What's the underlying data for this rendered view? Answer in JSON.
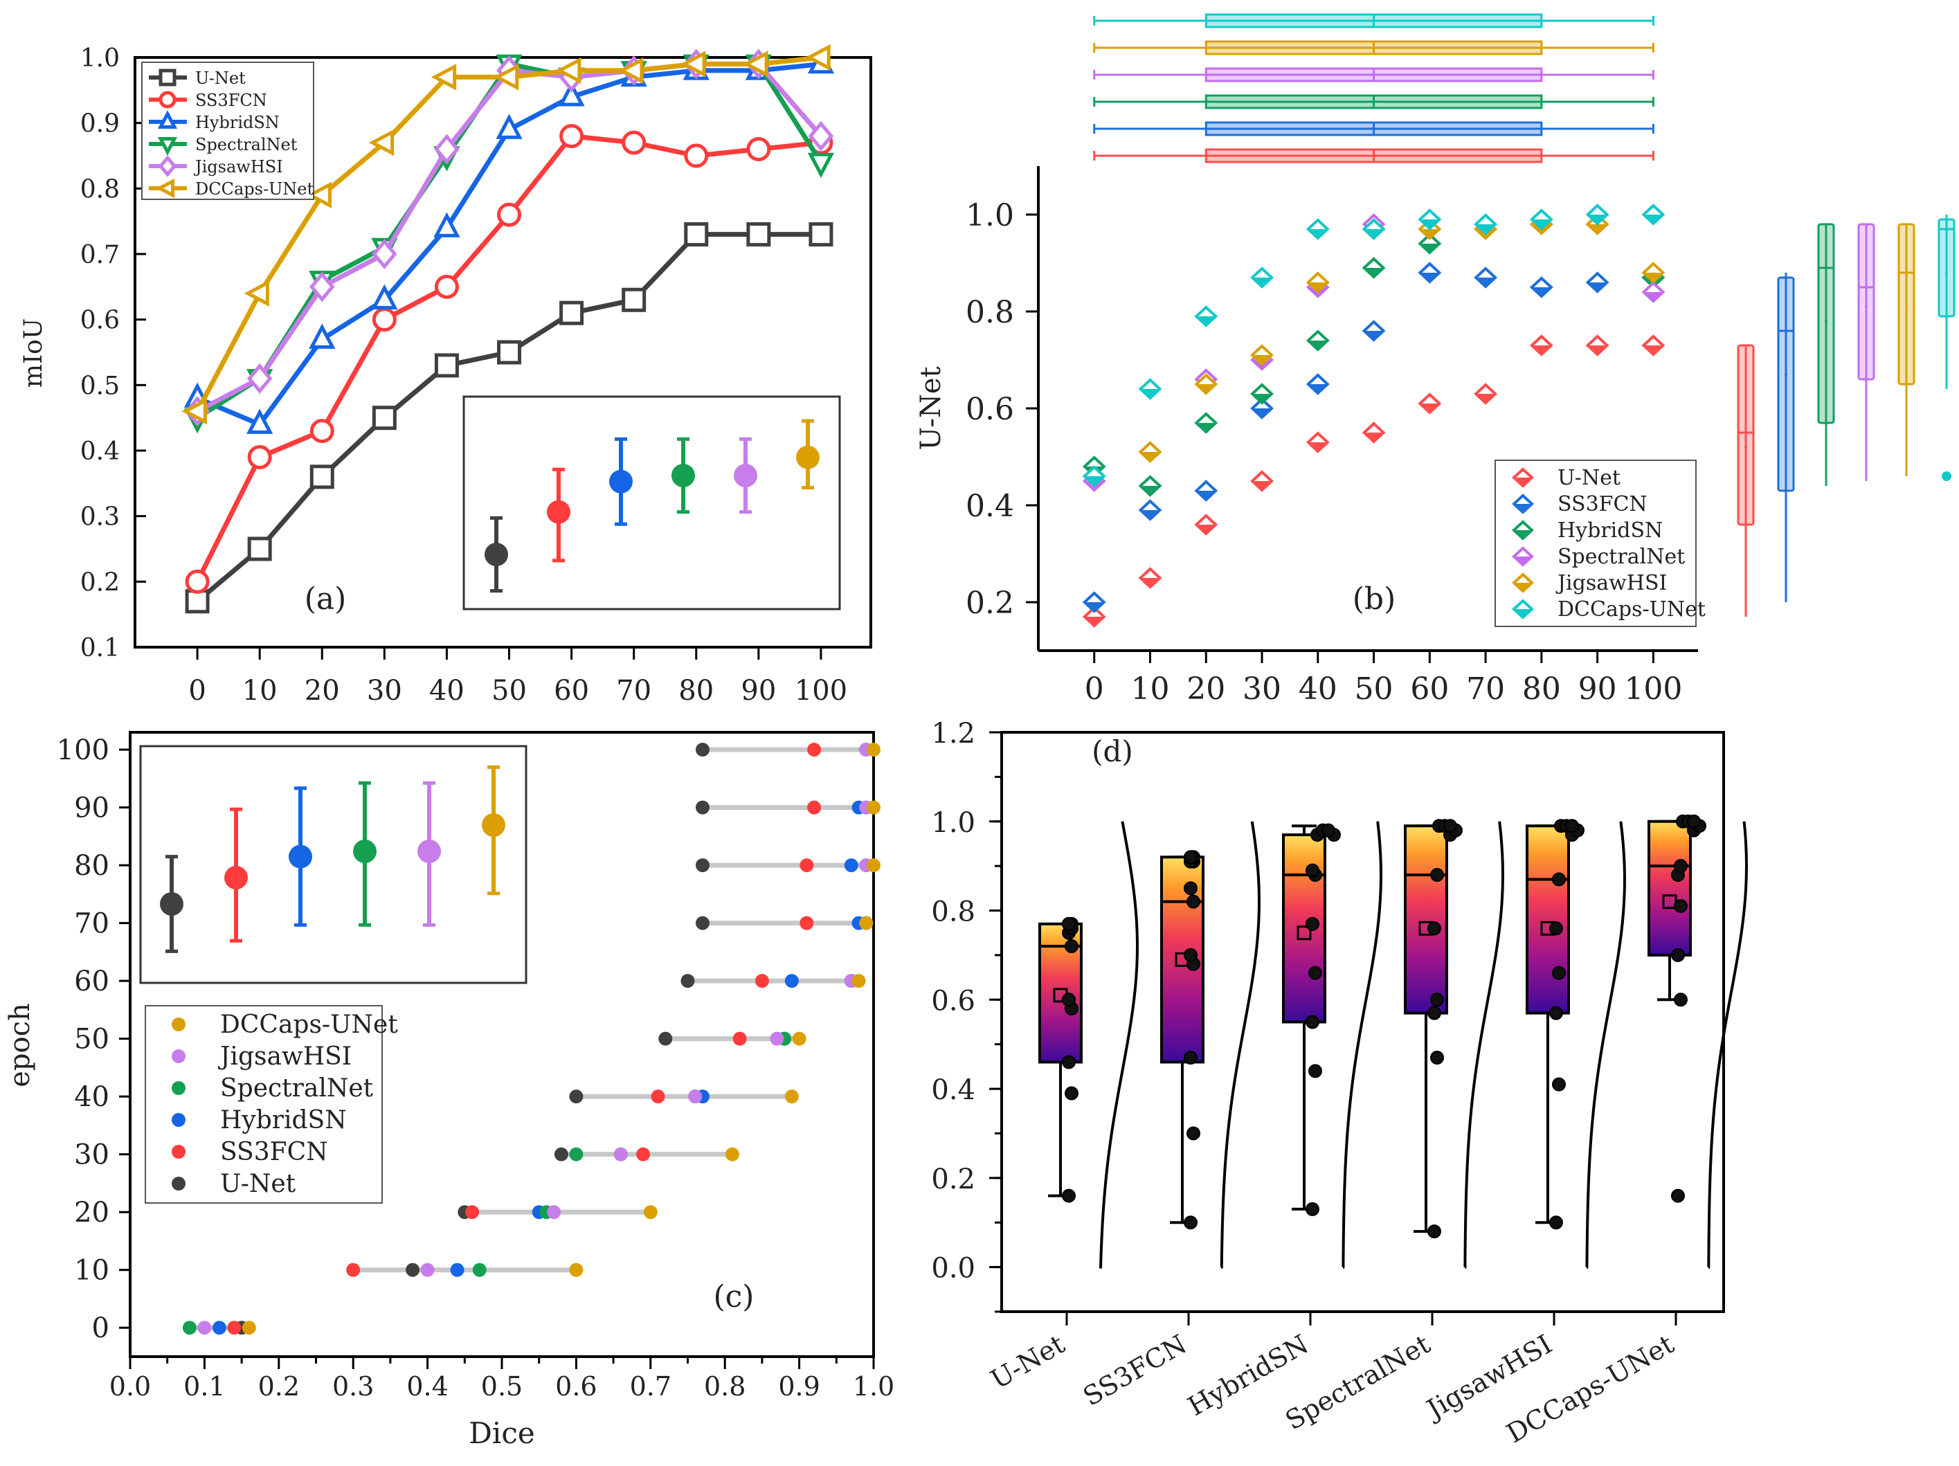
{
  "colors": {
    "a": [
      "#404040",
      "#ff3b3b",
      "#1565e6",
      "#14a050",
      "#c77dea",
      "#dba000"
    ],
    "b": [
      "#ff4d4d",
      "#1e6fd9",
      "#11a060",
      "#c46cf0",
      "#d9a000",
      "#12c9c9"
    ]
  },
  "chart_data": [
    {
      "id": "a",
      "type": "line",
      "panel_label": "(a)",
      "ylabel": "mIoU",
      "xlim": [
        -10,
        108
      ],
      "ylim": [
        0.1,
        1.0
      ],
      "x": [
        0,
        10,
        20,
        30,
        40,
        50,
        60,
        70,
        80,
        90,
        100
      ],
      "xticks": [
        "0",
        "10",
        "20",
        "30",
        "40",
        "50",
        "60",
        "70",
        "80",
        "90",
        "100"
      ],
      "yticks": [
        "0.1",
        "0.2",
        "0.3",
        "0.4",
        "0.5",
        "0.6",
        "0.7",
        "0.8",
        "0.9",
        "1.0"
      ],
      "series": [
        {
          "name": "U-Net",
          "values": [
            0.17,
            0.25,
            0.36,
            0.45,
            0.53,
            0.55,
            0.61,
            0.63,
            0.73,
            0.73,
            0.73
          ]
        },
        {
          "name": "SS3FCN",
          "values": [
            0.2,
            0.39,
            0.43,
            0.6,
            0.65,
            0.76,
            0.88,
            0.87,
            0.85,
            0.86,
            0.87
          ]
        },
        {
          "name": "HybridSN",
          "values": [
            0.48,
            0.44,
            0.57,
            0.63,
            0.74,
            0.89,
            0.94,
            0.97,
            0.98,
            0.98,
            0.99
          ]
        },
        {
          "name": "SpectralNet",
          "values": [
            0.45,
            0.51,
            0.66,
            0.71,
            0.85,
            0.99,
            0.97,
            0.98,
            0.99,
            0.99,
            0.84
          ]
        },
        {
          "name": "JigsawHSI",
          "values": [
            0.46,
            0.51,
            0.65,
            0.7,
            0.86,
            0.98,
            0.97,
            0.98,
            0.99,
            0.99,
            0.88
          ]
        },
        {
          "name": "DCCaps-UNet",
          "values": [
            0.46,
            0.64,
            0.79,
            0.87,
            0.97,
            0.97,
            0.98,
            0.98,
            0.99,
            0.99,
            1.0
          ]
        }
      ],
      "inset_summary": [
        {
          "name": "U-Net",
          "mean": 0.24,
          "low": 0.18,
          "high": 0.3
        },
        {
          "name": "SS3FCN",
          "mean": 0.31,
          "low": 0.23,
          "high": 0.38
        },
        {
          "name": "HybridSN",
          "mean": 0.36,
          "low": 0.29,
          "high": 0.43
        },
        {
          "name": "SpectralNet",
          "mean": 0.37,
          "low": 0.31,
          "high": 0.43
        },
        {
          "name": "JigsawHSI",
          "mean": 0.37,
          "low": 0.31,
          "high": 0.43
        },
        {
          "name": "DCCaps-UNet",
          "mean": 0.4,
          "low": 0.35,
          "high": 0.46
        }
      ]
    },
    {
      "id": "b",
      "type": "scatter",
      "panel_label": "(b)",
      "ylabel": "U-Net",
      "xlim": [
        -10,
        108
      ],
      "ylim": [
        0.1,
        1.1
      ],
      "x": [
        0,
        10,
        20,
        30,
        40,
        50,
        60,
        70,
        80,
        90,
        100
      ],
      "xticks": [
        "0",
        "10",
        "20",
        "30",
        "40",
        "50",
        "60",
        "70",
        "80",
        "90",
        "100"
      ],
      "yticks": [
        "0.2",
        "0.4",
        "0.6",
        "0.8",
        "1.0"
      ],
      "series": [
        {
          "name": "U-Net",
          "values": [
            0.17,
            0.25,
            0.36,
            0.45,
            0.53,
            0.55,
            0.61,
            0.63,
            0.73,
            0.73,
            0.73
          ]
        },
        {
          "name": "SS3FCN",
          "values": [
            0.2,
            0.39,
            0.43,
            0.6,
            0.65,
            0.76,
            0.88,
            0.87,
            0.85,
            0.86,
            0.87
          ]
        },
        {
          "name": "HybridSN",
          "values": [
            0.48,
            0.44,
            0.57,
            0.63,
            0.74,
            0.89,
            0.94,
            0.97,
            0.98,
            0.98,
            0.87
          ]
        },
        {
          "name": "SpectralNet",
          "values": [
            0.45,
            0.51,
            0.66,
            0.7,
            0.85,
            0.98,
            0.97,
            0.98,
            0.98,
            0.98,
            0.84
          ]
        },
        {
          "name": "JigsawHSI",
          "values": [
            0.46,
            0.51,
            0.65,
            0.71,
            0.86,
            0.97,
            0.97,
            0.97,
            0.98,
            0.98,
            0.88
          ]
        },
        {
          "name": "DCCaps-UNet",
          "values": [
            0.46,
            0.64,
            0.79,
            0.87,
            0.97,
            0.97,
            0.99,
            0.98,
            0.99,
            1.0,
            1.0
          ]
        }
      ],
      "top_box_x": {
        "whisker_low": 0,
        "q1": 20,
        "median": 50,
        "q3": 80,
        "whisker_high": 100
      },
      "side_boxes": [
        {
          "name": "U-Net",
          "whisker_low": 0.17,
          "q1": 0.36,
          "median": 0.55,
          "q3": 0.73,
          "whisker_high": 0.73,
          "mean": 0.52,
          "outliers": []
        },
        {
          "name": "SS3FCN",
          "whisker_low": 0.2,
          "q1": 0.43,
          "median": 0.76,
          "q3": 0.87,
          "whisker_high": 0.88,
          "mean": 0.67,
          "outliers": []
        },
        {
          "name": "HybridSN",
          "whisker_low": 0.44,
          "q1": 0.57,
          "median": 0.89,
          "q3": 0.98,
          "whisker_high": 0.98,
          "mean": 0.78,
          "outliers": []
        },
        {
          "name": "SpectralNet",
          "whisker_low": 0.45,
          "q1": 0.66,
          "median": 0.85,
          "q3": 0.98,
          "whisker_high": 0.98,
          "mean": 0.81,
          "outliers": []
        },
        {
          "name": "JigsawHSI",
          "whisker_low": 0.46,
          "q1": 0.65,
          "median": 0.88,
          "q3": 0.98,
          "whisker_high": 0.98,
          "mean": 0.81,
          "outliers": []
        },
        {
          "name": "DCCaps-UNet",
          "whisker_low": 0.64,
          "q1": 0.79,
          "median": 0.97,
          "q3": 0.99,
          "whisker_high": 1.0,
          "mean": 0.88,
          "outliers": [
            0.46
          ]
        }
      ]
    },
    {
      "id": "c",
      "type": "scatter",
      "panel_label": "(c)",
      "xlabel": "Dice",
      "ylabel": "epoch",
      "xlim": [
        0.0,
        1.0
      ],
      "ylim": [
        -5,
        103
      ],
      "xticks": [
        "0.0",
        "0.1",
        "0.2",
        "0.3",
        "0.4",
        "0.5",
        "0.6",
        "0.7",
        "0.8",
        "0.9",
        "1.0"
      ],
      "yticks": [
        "0",
        "10",
        "20",
        "30",
        "40",
        "50",
        "60",
        "70",
        "80",
        "90",
        "100"
      ],
      "epochs": [
        0,
        10,
        20,
        30,
        40,
        50,
        60,
        70,
        80,
        90,
        100
      ],
      "legend_order": [
        "DCCaps-UNet",
        "JigsawHSI",
        "SpectralNet",
        "HybridSN",
        "SS3FCN",
        "U-Net"
      ],
      "series": [
        {
          "name": "U-Net",
          "values": [
            0.15,
            0.38,
            0.45,
            0.58,
            0.6,
            0.72,
            0.75,
            0.77,
            0.77,
            0.77,
            0.77
          ]
        },
        {
          "name": "SS3FCN",
          "values": [
            0.14,
            0.3,
            0.46,
            0.69,
            0.71,
            0.82,
            0.85,
            0.91,
            0.91,
            0.92,
            0.92
          ]
        },
        {
          "name": "HybridSN",
          "values": [
            0.12,
            0.44,
            0.55,
            0.66,
            0.77,
            0.88,
            0.89,
            0.98,
            0.97,
            0.98,
            0.99
          ]
        },
        {
          "name": "SpectralNet",
          "values": [
            0.08,
            0.47,
            0.56,
            0.6,
            0.76,
            0.88,
            0.97,
            0.99,
            0.99,
            0.99,
            0.99
          ]
        },
        {
          "name": "JigsawHSI",
          "values": [
            0.1,
            0.4,
            0.57,
            0.66,
            0.76,
            0.87,
            0.97,
            0.99,
            0.99,
            0.99,
            0.99
          ]
        },
        {
          "name": "DCCaps-UNet",
          "values": [
            0.16,
            0.6,
            0.7,
            0.81,
            0.89,
            0.9,
            0.98,
            0.99,
            1.0,
            1.0,
            1.0
          ]
        }
      ],
      "inset_summary": [
        {
          "name": "U-Net",
          "mean": 0.7,
          "low": 0.61,
          "high": 0.79
        },
        {
          "name": "SS3FCN",
          "mean": 0.75,
          "low": 0.63,
          "high": 0.88
        },
        {
          "name": "HybridSN",
          "mean": 0.79,
          "low": 0.66,
          "high": 0.92
        },
        {
          "name": "SpectralNet",
          "mean": 0.8,
          "low": 0.66,
          "high": 0.93
        },
        {
          "name": "JigsawHSI",
          "mean": 0.8,
          "low": 0.66,
          "high": 0.93
        },
        {
          "name": "DCCaps-UNet",
          "mean": 0.85,
          "low": 0.72,
          "high": 0.96
        }
      ]
    },
    {
      "id": "d",
      "type": "box",
      "panel_label": "(d)",
      "ylim": [
        -0.1,
        1.2
      ],
      "yticks": [
        "0.0",
        "0.2",
        "0.4",
        "0.6",
        "0.8",
        "1.0",
        "1.2"
      ],
      "categories": [
        "U-Net",
        "SS3FCN",
        "HybridSN",
        "SpectralNet",
        "JigsawHSI",
        "DCCaps-UNet"
      ],
      "boxes": [
        {
          "name": "U-Net",
          "whisker_low": 0.16,
          "q1": 0.46,
          "median": 0.72,
          "q3": 0.77,
          "whisker_high": 0.77,
          "mean": 0.61,
          "points": [
            0.16,
            0.39,
            0.46,
            0.58,
            0.6,
            0.72,
            0.75,
            0.76,
            0.77,
            0.77,
            0.77
          ]
        },
        {
          "name": "SS3FCN",
          "whisker_low": 0.1,
          "q1": 0.46,
          "median": 0.82,
          "q3": 0.92,
          "whisker_high": 0.92,
          "mean": 0.69,
          "points": [
            0.1,
            0.3,
            0.47,
            0.68,
            0.7,
            0.82,
            0.85,
            0.91,
            0.91,
            0.92,
            0.92
          ]
        },
        {
          "name": "HybridSN",
          "whisker_low": 0.13,
          "q1": 0.55,
          "median": 0.88,
          "q3": 0.97,
          "whisker_high": 0.99,
          "mean": 0.75,
          "points": [
            0.13,
            0.44,
            0.55,
            0.66,
            0.77,
            0.88,
            0.89,
            0.97,
            0.97,
            0.98,
            0.98
          ]
        },
        {
          "name": "SpectralNet",
          "whisker_low": 0.08,
          "q1": 0.57,
          "median": 0.88,
          "q3": 0.99,
          "whisker_high": 0.99,
          "mean": 0.76,
          "points": [
            0.08,
            0.47,
            0.57,
            0.6,
            0.76,
            0.88,
            0.97,
            0.98,
            0.99,
            0.99,
            0.99
          ]
        },
        {
          "name": "JigsawHSI",
          "whisker_low": 0.1,
          "q1": 0.57,
          "median": 0.87,
          "q3": 0.99,
          "whisker_high": 0.99,
          "mean": 0.76,
          "points": [
            0.1,
            0.41,
            0.57,
            0.66,
            0.76,
            0.87,
            0.97,
            0.98,
            0.99,
            0.99,
            0.99
          ]
        },
        {
          "name": "DCCaps-UNet",
          "whisker_low": 0.6,
          "q1": 0.7,
          "median": 0.9,
          "q3": 1.0,
          "whisker_high": 1.0,
          "mean": 0.82,
          "points": [
            0.16,
            0.6,
            0.7,
            0.81,
            0.88,
            0.9,
            0.98,
            0.99,
            1.0,
            1.0,
            1.0
          ]
        }
      ]
    }
  ]
}
